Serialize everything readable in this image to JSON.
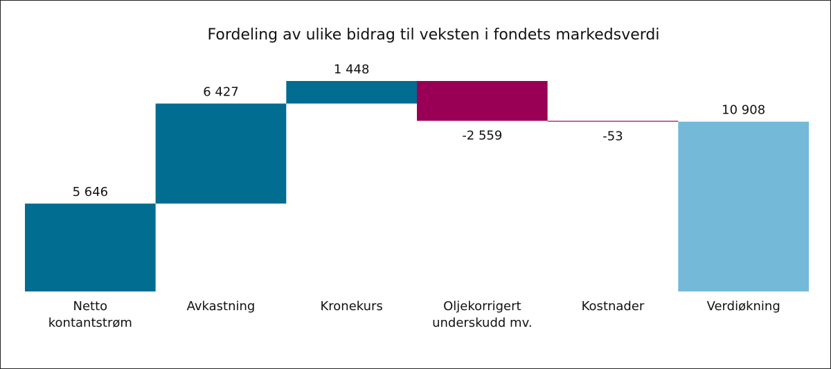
{
  "chart_data": {
    "type": "waterfall",
    "title": "Fordeling av ulike bidrag til veksten i fondets markedsverdi",
    "categories": [
      "Netto kontantstrøm",
      "Avkastning",
      "Kronekurs",
      "Oljekorrigert underskudd mv.",
      "Kostnader",
      "Verdiøkning"
    ],
    "values": [
      5646,
      6427,
      1448,
      -2559,
      -53,
      10908
    ],
    "value_labels": [
      "5 646",
      "6 427",
      "1 448",
      "-2 559",
      "-53",
      "10 908"
    ],
    "totals": [
      false,
      false,
      false,
      false,
      false,
      true
    ],
    "colors": [
      "#006d91",
      "#006d91",
      "#006d91",
      "#990055",
      "#990055",
      "#74b9d8"
    ]
  }
}
